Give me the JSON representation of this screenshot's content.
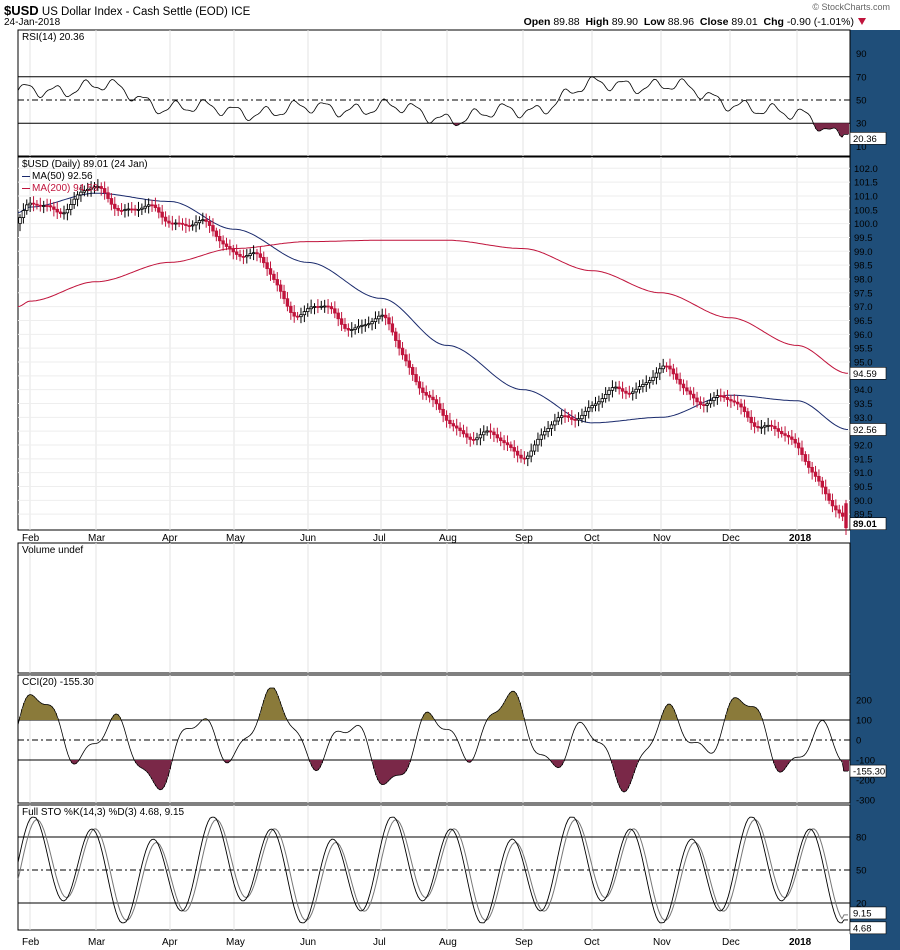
{
  "header": {
    "symbol": "$USD",
    "description": "US Dollar Index - Cash Settle (EOD)",
    "exchange": "ICE",
    "date": "24-Jan-2018",
    "open_label": "Open",
    "open": "89.88",
    "high_label": "High",
    "high": "89.90",
    "low_label": "Low",
    "low": "88.96",
    "close_label": "Close",
    "close": "89.01",
    "chg_label": "Chg",
    "chg": "-0.90 (-1.01%)",
    "copyright": "© StockCharts.com"
  },
  "colors": {
    "background": "#ffffff",
    "panel_bg": "#ffffff",
    "right_margin": "#1f4e79",
    "up_candle": "#000000",
    "down_candle": "#c0143c",
    "ma50": "#1a2a6c",
    "ma200": "#c0143c",
    "fill_overbought": "#8a7a3a",
    "fill_oversold": "#7a2848",
    "stoch_k": "#000000",
    "stoch_d": "#777777"
  },
  "panels": {
    "rsi": {
      "label": "RSI(14) 20.36",
      "current": "20.36",
      "ticks": [
        "90",
        "70",
        "50",
        "30",
        "10"
      ]
    },
    "price": {
      "label": "$USD (Daily) 89.01 (24 Jan)",
      "ma50_label": "MA(50) 92.56",
      "ma200_label": "MA(200) 94.59",
      "ma50_value": "92.56",
      "ma200_value": "94.59",
      "last_value": "89.01",
      "ticks": [
        "102.0",
        "101.5",
        "101.0",
        "100.5",
        "100.0",
        "99.5",
        "99.0",
        "98.5",
        "98.0",
        "97.5",
        "97.0",
        "96.5",
        "96.0",
        "95.5",
        "95.0",
        "94.5",
        "94.0",
        "93.5",
        "93.0",
        "92.5",
        "92.0",
        "91.5",
        "91.0",
        "90.5",
        "90.0",
        "89.5"
      ]
    },
    "volume": {
      "label": "Volume undef"
    },
    "cci": {
      "label": "CCI(20) -155.30",
      "current": "-155.30",
      "ticks": [
        "200",
        "100",
        "0",
        "-100",
        "-200",
        "-300"
      ]
    },
    "stoch": {
      "label": "Full STO %K(14,3) %D(3) 4.68, 9.15",
      "k_current": "4.68",
      "d_current": "9.15",
      "ticks": [
        "80",
        "50",
        "20"
      ]
    }
  },
  "x_axis": {
    "months": [
      "Feb",
      "Mar",
      "Apr",
      "May",
      "Jun",
      "Jul",
      "Aug",
      "Sep",
      "Oct",
      "Nov",
      "Dec",
      "2018"
    ]
  },
  "chart_data": {
    "type": "line",
    "series": [
      {
        "name": "$USD",
        "x": [
          "Feb",
          "Mar",
          "Apr",
          "May",
          "Jun",
          "Jul",
          "Aug",
          "Sep",
          "Oct",
          "Nov",
          "Dec",
          "2018",
          "24 Jan"
        ],
        "values": [
          100.3,
          101.2,
          100.2,
          99.1,
          97.0,
          96.2,
          92.8,
          92.0,
          93.3,
          94.6,
          93.5,
          91.8,
          89.01
        ]
      },
      {
        "name": "MA(50)",
        "x": [
          "Feb",
          "Mar",
          "Apr",
          "May",
          "Jun",
          "Jul",
          "Aug",
          "Sep",
          "Oct",
          "Nov",
          "Dec",
          "2018",
          "24 Jan"
        ],
        "values": [
          100.6,
          101.1,
          100.8,
          99.8,
          98.6,
          97.3,
          95.6,
          94.0,
          92.8,
          93.0,
          93.8,
          93.6,
          92.56
        ]
      },
      {
        "name": "MA(200)",
        "x": [
          "Feb",
          "Mar",
          "Apr",
          "May",
          "Jun",
          "Jul",
          "Aug",
          "Sep",
          "Oct",
          "Nov",
          "Dec",
          "2018",
          "24 Jan"
        ],
        "values": [
          97.2,
          97.9,
          98.6,
          99.1,
          99.35,
          99.4,
          99.4,
          99.1,
          98.3,
          97.5,
          96.6,
          95.6,
          94.59
        ]
      }
    ],
    "ylim": [
      89.0,
      102.3
    ]
  }
}
